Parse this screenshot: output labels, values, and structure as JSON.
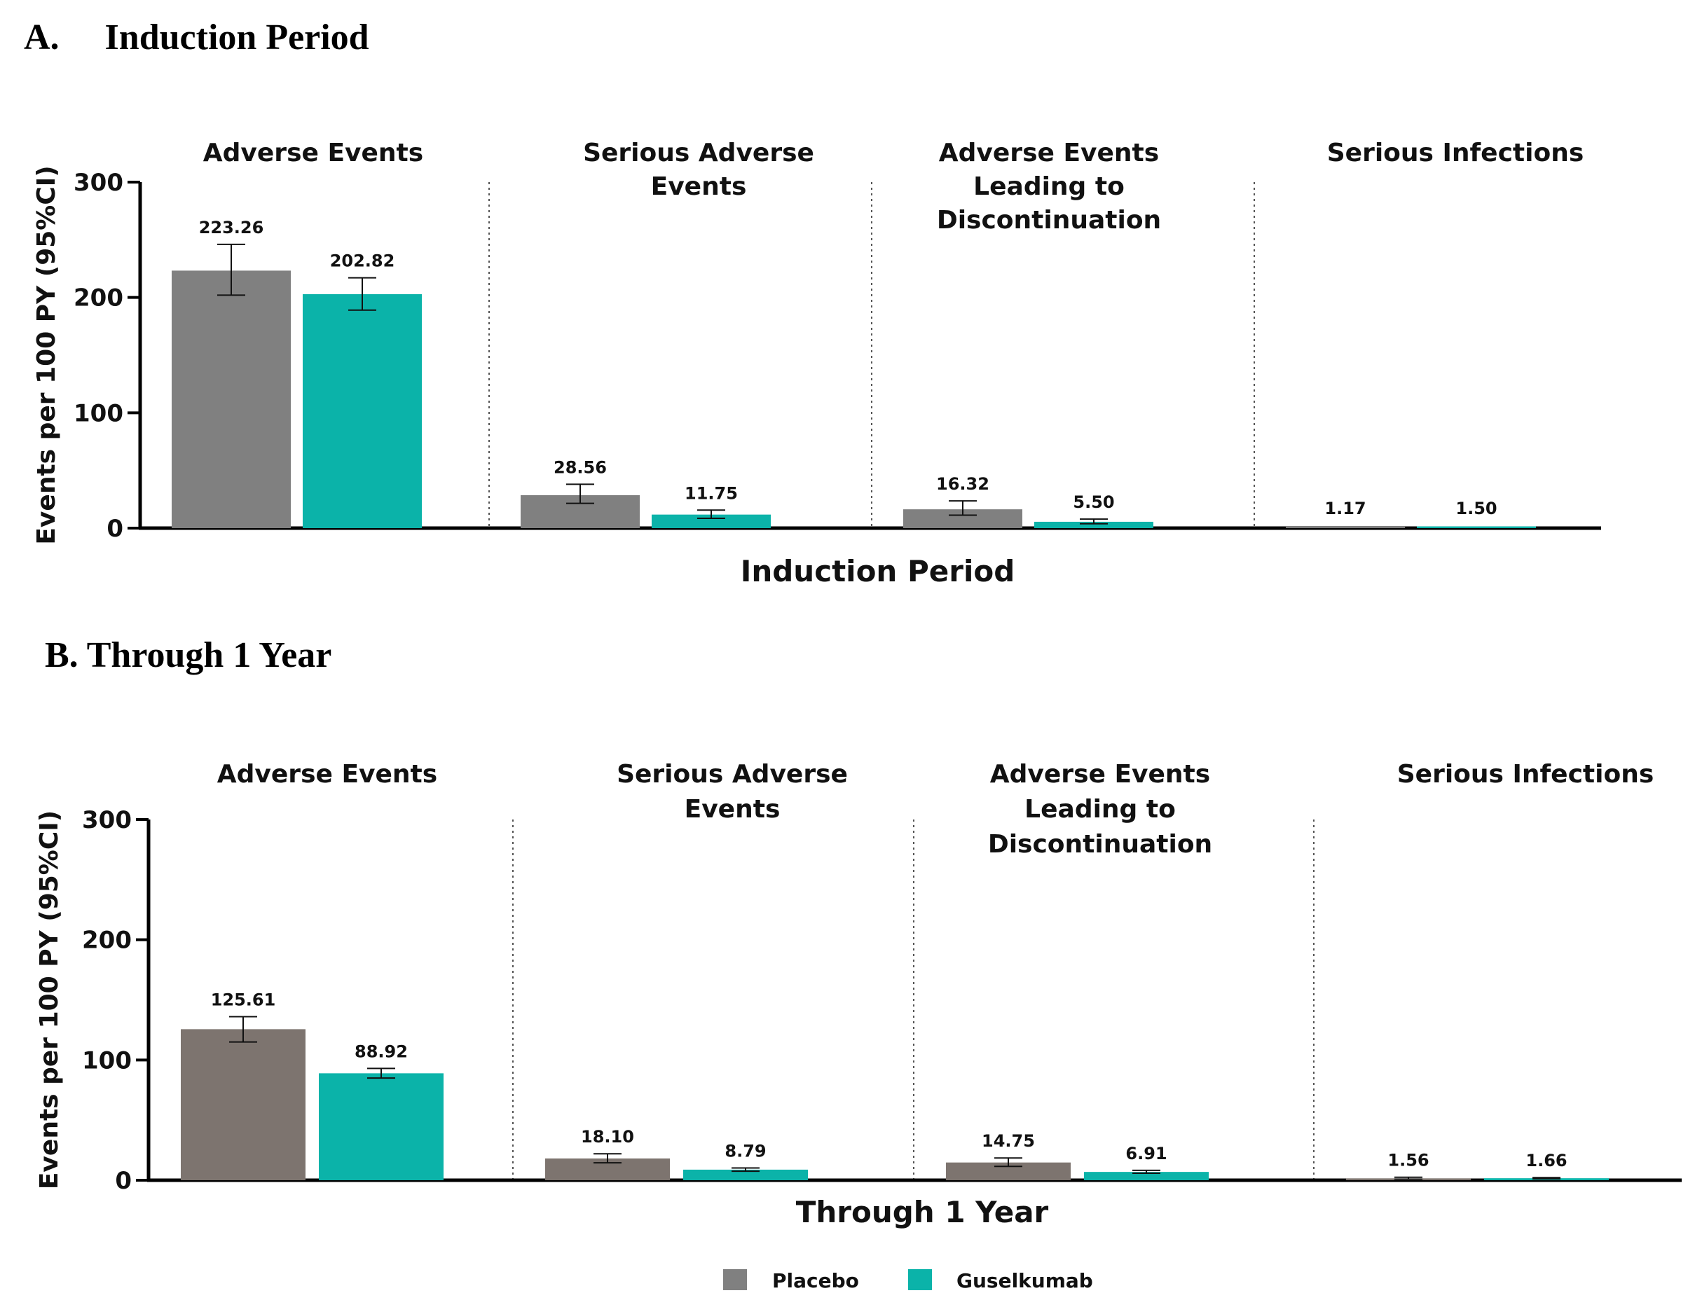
{
  "colors": {
    "placebo_induction": "#808080",
    "placebo_year": "#7d746f",
    "guselkumab": "#0bb3a9",
    "axis": "#000000"
  },
  "legend": {
    "items": [
      {
        "label": "Placebo",
        "color": "#808080"
      },
      {
        "label": "Guselkumab",
        "color": "#0bb3a9"
      }
    ]
  },
  "chart_data": [
    {
      "type": "bar",
      "panel_heading": "A.     Induction Period",
      "xlabel": "Induction Period",
      "ylabel": "Events per 100 PY (95%CI)",
      "ylim": [
        0,
        300
      ],
      "yticks": [
        0,
        100,
        200,
        300
      ],
      "grid": false,
      "legend": "bottom-center",
      "categories": [
        "Adverse Events",
        "Serious Adverse Events",
        "Adverse Events Leading to Discontinuation",
        "Serious Infections"
      ],
      "category_title_lines": [
        [
          "Adverse Events"
        ],
        [
          "Serious Adverse",
          "Events"
        ],
        [
          "Adverse Events",
          "Leading to",
          "Discontinuation"
        ],
        [
          "Serious Infections"
        ]
      ],
      "series": [
        {
          "name": "Placebo",
          "values": [
            223.26,
            28.56,
            16.32,
            1.17
          ],
          "value_labels": [
            "223.26",
            "28.56",
            "16.32",
            "1.17"
          ],
          "ci_low": [
            202,
            21.5,
            11.2,
            null
          ],
          "ci_high": [
            246,
            38,
            23.6,
            null
          ]
        },
        {
          "name": "Guselkumab",
          "values": [
            202.82,
            11.75,
            5.5,
            1.5
          ],
          "value_labels": [
            "202.82",
            "11.75",
            "5.50",
            "1.50"
          ],
          "ci_low": [
            189,
            8.5,
            3.8,
            null
          ],
          "ci_high": [
            217,
            15.6,
            7.8,
            null
          ]
        }
      ]
    },
    {
      "type": "bar",
      "panel_heading": "B. Through 1 Year",
      "xlabel": "Through 1 Year",
      "ylabel": "Events per 100 PY (95%CI)",
      "ylim": [
        0,
        300
      ],
      "yticks": [
        0,
        100,
        200,
        300
      ],
      "grid": false,
      "legend": "bottom-center",
      "categories": [
        "Adverse Events",
        "Serious Adverse Events",
        "Adverse Events Leading to Discontinuation",
        "Serious Infections"
      ],
      "category_title_lines": [
        [
          "Adverse Events"
        ],
        [
          "Serious Adverse",
          "Events"
        ],
        [
          "Adverse Events",
          "Leading to",
          "Discontinuation"
        ],
        [
          "Serious Infections"
        ]
      ],
      "series": [
        {
          "name": "Placebo",
          "values": [
            125.61,
            18.1,
            14.75,
            1.56
          ],
          "value_labels": [
            "125.61",
            "18.10",
            "14.75",
            "1.56"
          ],
          "ci_low": [
            115,
            14.5,
            11.5,
            0.9
          ],
          "ci_high": [
            136,
            22,
            18.5,
            2.5
          ]
        },
        {
          "name": "Guselkumab",
          "values": [
            88.92,
            8.79,
            6.91,
            1.66
          ],
          "value_labels": [
            "88.92",
            "8.79",
            "6.91",
            "1.66"
          ],
          "ci_low": [
            85,
            7.5,
            5.8,
            1.2
          ],
          "ci_high": [
            93,
            10.2,
            8.2,
            2.2
          ]
        }
      ]
    }
  ]
}
